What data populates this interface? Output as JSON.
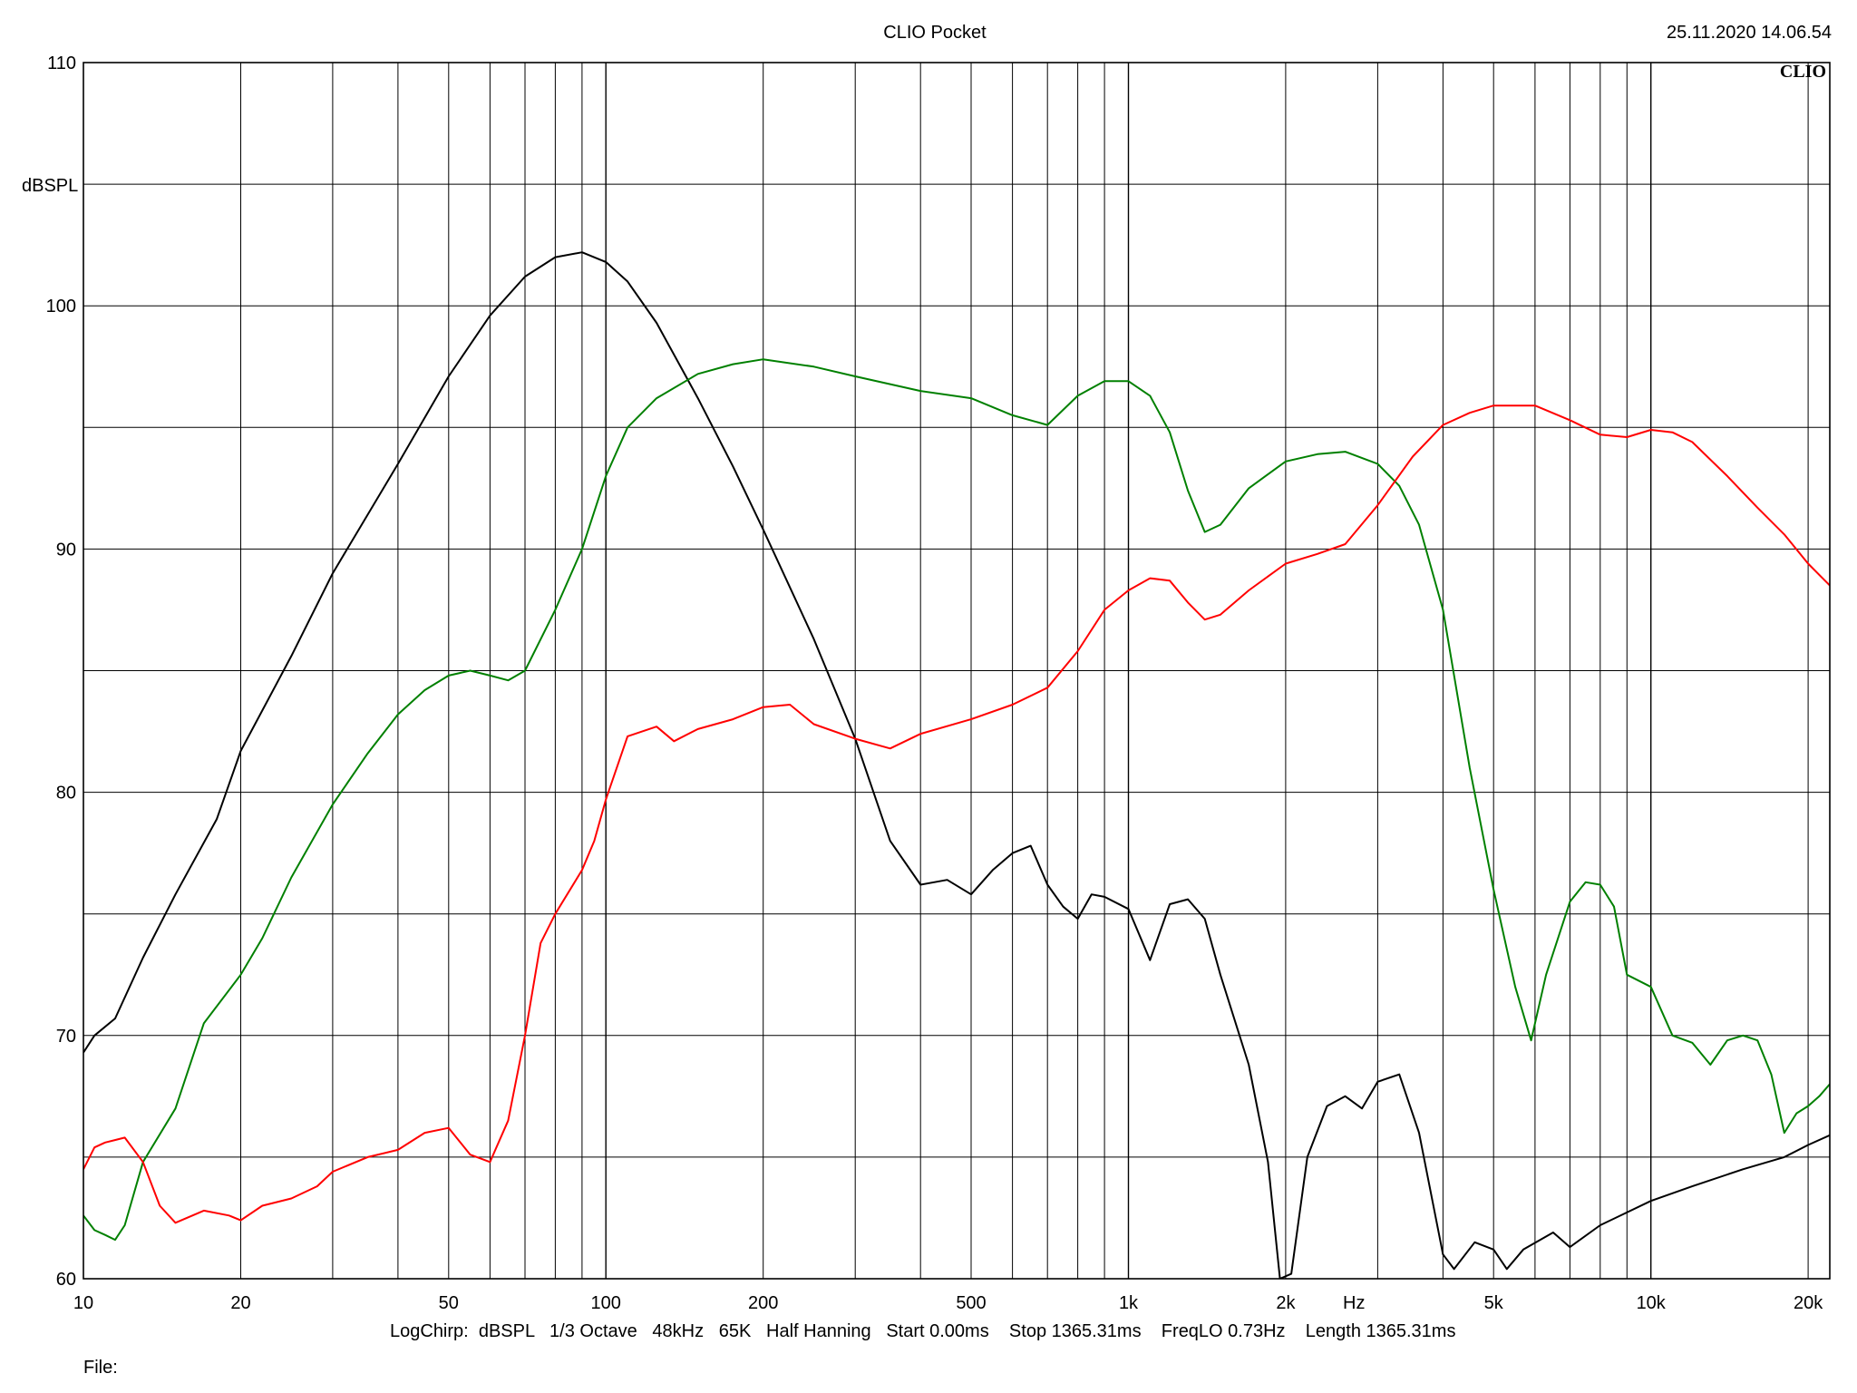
{
  "header": {
    "app_title": "CLIO Pocket",
    "timestamp": "25.11.2020 14.06.54",
    "logo": "CLIO"
  },
  "footer": {
    "settings": "LogChirp:  dBSPL   1/3 Octave   48kHz   65K   Half Hanning   Start 0.00ms    Stop 1365.31ms    FreqLO 0.73Hz    Length 1365.31ms",
    "file_label": "File:"
  },
  "chart_data": {
    "type": "line",
    "title": "",
    "xlabel": "Hz",
    "ylabel": "dBSPL",
    "xscale": "log",
    "xlim": [
      10,
      22000
    ],
    "ylim": [
      60,
      110
    ],
    "grid": true,
    "x_ticks": [
      {
        "value": 10,
        "label": "10"
      },
      {
        "value": 20,
        "label": "20"
      },
      {
        "value": 50,
        "label": "50"
      },
      {
        "value": 100,
        "label": "100"
      },
      {
        "value": 200,
        "label": "200"
      },
      {
        "value": 500,
        "label": "500"
      },
      {
        "value": 1000,
        "label": "1k"
      },
      {
        "value": 2000,
        "label": "2k"
      },
      {
        "value": 5000,
        "label": "5k"
      },
      {
        "value": 10000,
        "label": "10k"
      },
      {
        "value": 20000,
        "label": "20k"
      }
    ],
    "y_ticks": [
      {
        "value": 60,
        "label": "60"
      },
      {
        "value": 70,
        "label": "70"
      },
      {
        "value": 80,
        "label": "80"
      },
      {
        "value": 90,
        "label": "90"
      },
      {
        "value": 100,
        "label": "100"
      },
      {
        "value": 110,
        "label": "110"
      }
    ],
    "series": [
      {
        "color": "#000000",
        "points": [
          [
            10,
            69.3
          ],
          [
            10.5,
            70.0
          ],
          [
            11.5,
            70.7
          ],
          [
            13,
            73.2
          ],
          [
            15,
            75.8
          ],
          [
            18,
            78.9
          ],
          [
            20,
            81.7
          ],
          [
            25,
            85.6
          ],
          [
            30,
            89.0
          ],
          [
            40,
            93.5
          ],
          [
            50,
            97.1
          ],
          [
            60,
            99.6
          ],
          [
            70,
            101.2
          ],
          [
            80,
            102.0
          ],
          [
            90,
            102.2
          ],
          [
            100,
            101.8
          ],
          [
            110,
            101.0
          ],
          [
            125,
            99.3
          ],
          [
            150,
            96.2
          ],
          [
            175,
            93.4
          ],
          [
            200,
            90.8
          ],
          [
            250,
            86.3
          ],
          [
            300,
            82.2
          ],
          [
            350,
            78.0
          ],
          [
            400,
            76.2
          ],
          [
            450,
            76.4
          ],
          [
            500,
            75.8
          ],
          [
            550,
            76.8
          ],
          [
            600,
            77.5
          ],
          [
            650,
            77.8
          ],
          [
            700,
            76.2
          ],
          [
            750,
            75.3
          ],
          [
            800,
            74.8
          ],
          [
            850,
            75.8
          ],
          [
            900,
            75.7
          ],
          [
            1000,
            75.2
          ],
          [
            1100,
            73.1
          ],
          [
            1200,
            75.4
          ],
          [
            1300,
            75.6
          ],
          [
            1400,
            74.8
          ],
          [
            1500,
            72.5
          ],
          [
            1700,
            68.8
          ],
          [
            1850,
            64.8
          ],
          [
            1950,
            60.0
          ],
          [
            2050,
            60.2
          ],
          [
            2200,
            65.0
          ],
          [
            2400,
            67.1
          ],
          [
            2600,
            67.5
          ],
          [
            2800,
            67.0
          ],
          [
            3000,
            68.1
          ],
          [
            3300,
            68.4
          ],
          [
            3600,
            66.0
          ],
          [
            4000,
            61.0
          ],
          [
            4200,
            60.4
          ],
          [
            4600,
            61.5
          ],
          [
            5000,
            61.2
          ],
          [
            5300,
            60.4
          ],
          [
            5700,
            61.2
          ],
          [
            6500,
            61.9
          ],
          [
            7000,
            61.3
          ],
          [
            8000,
            62.2
          ],
          [
            10000,
            63.2
          ],
          [
            12000,
            63.8
          ],
          [
            15000,
            64.5
          ],
          [
            18000,
            65.0
          ],
          [
            20000,
            65.5
          ],
          [
            22000,
            65.9
          ]
        ]
      },
      {
        "color": "#008000",
        "points": [
          [
            10,
            62.6
          ],
          [
            10.5,
            62.0
          ],
          [
            11,
            61.8
          ],
          [
            11.5,
            61.6
          ],
          [
            12,
            62.2
          ],
          [
            13,
            64.8
          ],
          [
            15,
            67.0
          ],
          [
            17,
            70.5
          ],
          [
            20,
            72.5
          ],
          [
            22,
            74.0
          ],
          [
            25,
            76.5
          ],
          [
            30,
            79.5
          ],
          [
            35,
            81.6
          ],
          [
            40,
            83.2
          ],
          [
            45,
            84.2
          ],
          [
            50,
            84.8
          ],
          [
            55,
            85.0
          ],
          [
            60,
            84.8
          ],
          [
            65,
            84.6
          ],
          [
            70,
            85.0
          ],
          [
            80,
            87.5
          ],
          [
            90,
            90.0
          ],
          [
            100,
            93.0
          ],
          [
            110,
            95.0
          ],
          [
            125,
            96.2
          ],
          [
            150,
            97.2
          ],
          [
            175,
            97.6
          ],
          [
            200,
            97.8
          ],
          [
            250,
            97.5
          ],
          [
            300,
            97.1
          ],
          [
            400,
            96.5
          ],
          [
            500,
            96.2
          ],
          [
            600,
            95.5
          ],
          [
            700,
            95.1
          ],
          [
            800,
            96.3
          ],
          [
            900,
            96.9
          ],
          [
            1000,
            96.9
          ],
          [
            1100,
            96.3
          ],
          [
            1200,
            94.8
          ],
          [
            1300,
            92.4
          ],
          [
            1400,
            90.7
          ],
          [
            1500,
            91.0
          ],
          [
            1700,
            92.5
          ],
          [
            2000,
            93.6
          ],
          [
            2300,
            93.9
          ],
          [
            2600,
            94.0
          ],
          [
            3000,
            93.5
          ],
          [
            3300,
            92.6
          ],
          [
            3600,
            91.0
          ],
          [
            4000,
            87.5
          ],
          [
            4500,
            81.0
          ],
          [
            5000,
            76.0
          ],
          [
            5500,
            72.0
          ],
          [
            5900,
            69.8
          ],
          [
            6300,
            72.5
          ],
          [
            7000,
            75.5
          ],
          [
            7500,
            76.3
          ],
          [
            8000,
            76.2
          ],
          [
            8500,
            75.3
          ],
          [
            9000,
            72.5
          ],
          [
            10000,
            72.0
          ],
          [
            11000,
            70.0
          ],
          [
            12000,
            69.7
          ],
          [
            13000,
            68.8
          ],
          [
            14000,
            69.8
          ],
          [
            15000,
            70.0
          ],
          [
            16000,
            69.8
          ],
          [
            17000,
            68.4
          ],
          [
            18000,
            66.0
          ],
          [
            19000,
            66.8
          ],
          [
            20000,
            67.1
          ],
          [
            21000,
            67.5
          ],
          [
            22000,
            68.0
          ]
        ]
      },
      {
        "color": "#ff0000",
        "points": [
          [
            10,
            64.5
          ],
          [
            10.5,
            65.4
          ],
          [
            11,
            65.6
          ],
          [
            12,
            65.8
          ],
          [
            13,
            64.8
          ],
          [
            14,
            63.0
          ],
          [
            15,
            62.3
          ],
          [
            17,
            62.8
          ],
          [
            19,
            62.6
          ],
          [
            20,
            62.4
          ],
          [
            22,
            63.0
          ],
          [
            25,
            63.3
          ],
          [
            28,
            63.8
          ],
          [
            30,
            64.4
          ],
          [
            35,
            65.0
          ],
          [
            40,
            65.3
          ],
          [
            45,
            66.0
          ],
          [
            50,
            66.2
          ],
          [
            55,
            65.1
          ],
          [
            60,
            64.8
          ],
          [
            65,
            66.5
          ],
          [
            70,
            70.0
          ],
          [
            75,
            73.8
          ],
          [
            80,
            75.0
          ],
          [
            90,
            76.8
          ],
          [
            95,
            78.0
          ],
          [
            100,
            79.7
          ],
          [
            110,
            82.3
          ],
          [
            125,
            82.7
          ],
          [
            135,
            82.1
          ],
          [
            150,
            82.6
          ],
          [
            175,
            83.0
          ],
          [
            200,
            83.5
          ],
          [
            225,
            83.6
          ],
          [
            250,
            82.8
          ],
          [
            300,
            82.2
          ],
          [
            350,
            81.8
          ],
          [
            400,
            82.4
          ],
          [
            500,
            83.0
          ],
          [
            600,
            83.6
          ],
          [
            700,
            84.3
          ],
          [
            800,
            85.8
          ],
          [
            900,
            87.5
          ],
          [
            1000,
            88.3
          ],
          [
            1100,
            88.8
          ],
          [
            1200,
            88.7
          ],
          [
            1300,
            87.8
          ],
          [
            1400,
            87.1
          ],
          [
            1500,
            87.3
          ],
          [
            1700,
            88.3
          ],
          [
            2000,
            89.4
          ],
          [
            2300,
            89.8
          ],
          [
            2600,
            90.2
          ],
          [
            3000,
            91.8
          ],
          [
            3500,
            93.8
          ],
          [
            4000,
            95.1
          ],
          [
            4500,
            95.6
          ],
          [
            5000,
            95.9
          ],
          [
            6000,
            95.9
          ],
          [
            7000,
            95.3
          ],
          [
            8000,
            94.7
          ],
          [
            9000,
            94.6
          ],
          [
            10000,
            94.9
          ],
          [
            11000,
            94.8
          ],
          [
            12000,
            94.4
          ],
          [
            14000,
            93.0
          ],
          [
            16000,
            91.7
          ],
          [
            18000,
            90.6
          ],
          [
            20000,
            89.4
          ],
          [
            22000,
            88.5
          ]
        ]
      }
    ]
  }
}
